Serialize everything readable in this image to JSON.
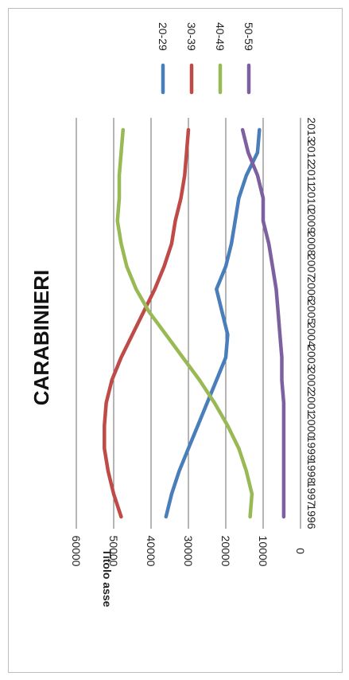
{
  "chart_data": {
    "type": "line",
    "title": "CARABINIERI",
    "ylabel": "Titolo asse",
    "xlabel": "",
    "ylim": [
      0,
      60000
    ],
    "yticks": [
      "0",
      "10000",
      "20000",
      "30000",
      "40000",
      "50000",
      "60000"
    ],
    "categories": [
      "1996",
      "1997",
      "1998",
      "1999",
      "2000",
      "2001",
      "2002",
      "2003",
      "2004",
      "2005",
      "2006",
      "2007",
      "2008",
      "2009",
      "2010",
      "2011",
      "2012",
      "2013"
    ],
    "grid": true,
    "legend_position": "top",
    "series": [
      {
        "name": "20-29",
        "color": "#4a7ebb",
        "values": [
          36000,
          34500,
          32500,
          30000,
          27500,
          25000,
          22500,
          20000,
          19500,
          21000,
          22500,
          20000,
          18500,
          17500,
          16500,
          14500,
          11500,
          11000
        ]
      },
      {
        "name": "30-39",
        "color": "#be4b48",
        "values": [
          48000,
          50000,
          51500,
          52500,
          52500,
          52000,
          50500,
          48000,
          45000,
          42000,
          39000,
          36500,
          34500,
          33500,
          32000,
          31000,
          30500,
          30000
        ]
      },
      {
        "name": "40-49",
        "color": "#98b954",
        "values": [
          13500,
          13000,
          14500,
          16500,
          19500,
          23000,
          27000,
          31500,
          36000,
          40500,
          44000,
          46500,
          48000,
          49000,
          48500,
          48500,
          48000,
          47500
        ]
      },
      {
        "name": "50-59",
        "color": "#7d60a0",
        "values": [
          4500,
          4500,
          4500,
          4500,
          4500,
          4500,
          5000,
          5000,
          5500,
          6000,
          6500,
          7500,
          8500,
          10000,
          10000,
          11500,
          14000,
          15500
        ]
      }
    ]
  }
}
